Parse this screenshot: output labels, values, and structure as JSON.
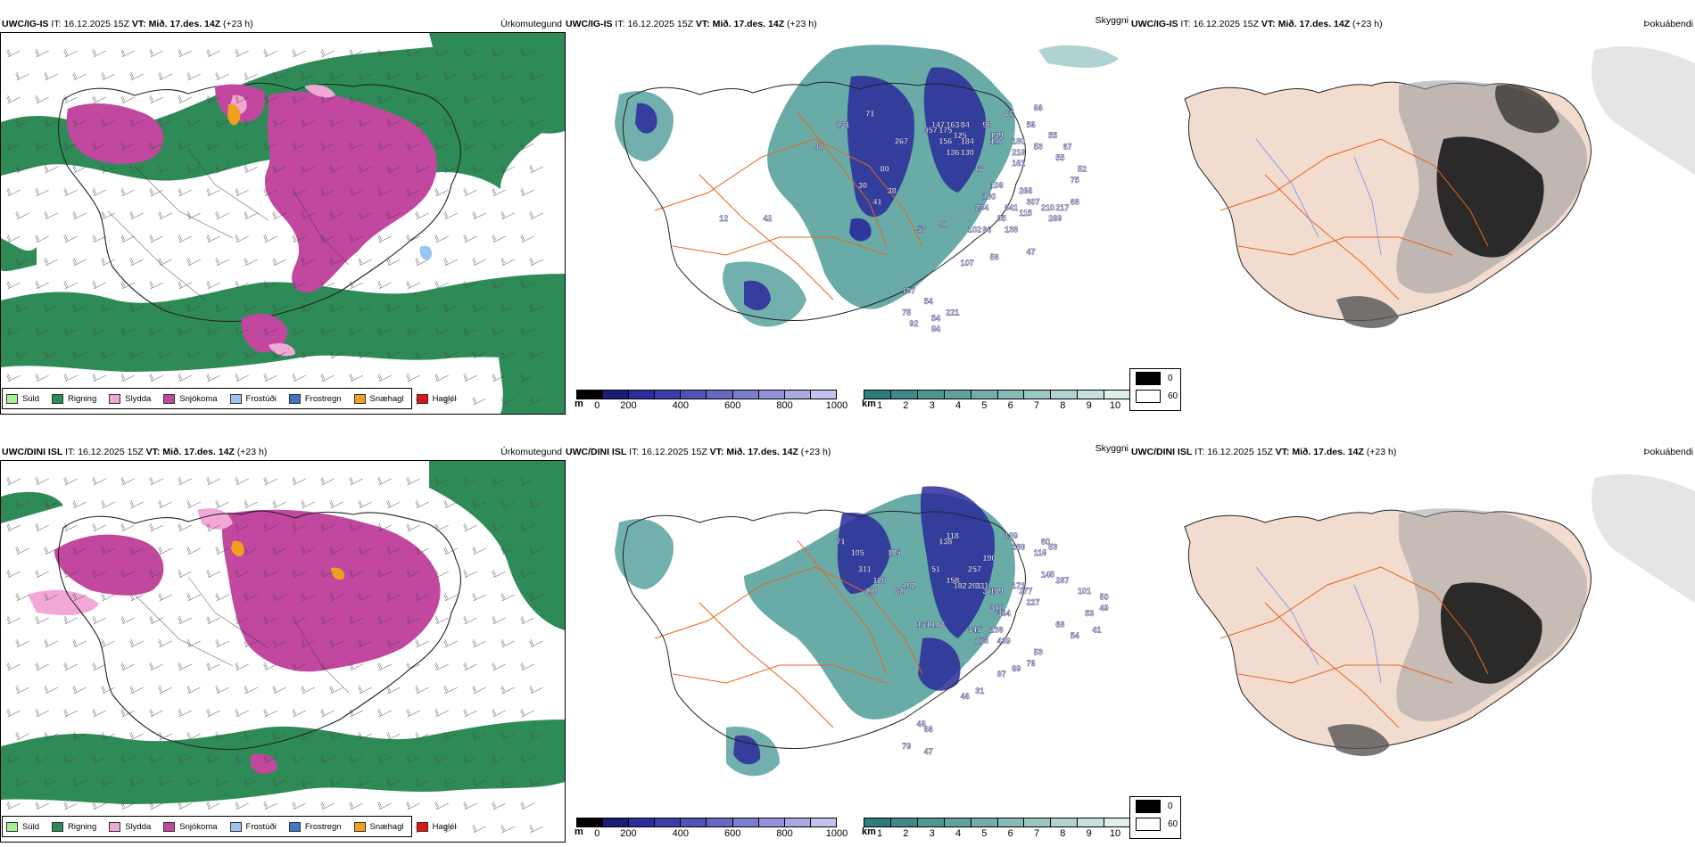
{
  "rows": [
    {
      "product": "UWC/IG-IS",
      "it_label": "IT:",
      "it_value": "16.12.2025 15Z",
      "vt_label": "VT:",
      "vt_value": "Mið. 17.des. 14Z",
      "lead": "(+23 h)",
      "variables": [
        "Úrkomutegund",
        "Skyggni",
        "Þokuábendi"
      ],
      "visibility_labels": [
        "131",
        "71",
        "98",
        "267",
        "80",
        "30",
        "38",
        "41",
        "147",
        "163",
        "457",
        "175",
        "84",
        "125",
        "156",
        "184",
        "130",
        "136",
        "96",
        "87",
        "66",
        "56",
        "55",
        "139",
        "147",
        "180",
        "53",
        "218",
        "161",
        "55",
        "67",
        "52",
        "75",
        "63",
        "108",
        "266",
        "234",
        "180",
        "95",
        "641",
        "307",
        "210",
        "217",
        "68",
        "57",
        "91",
        "102",
        "96",
        "138",
        "115",
        "269",
        "47",
        "58",
        "107",
        "42",
        "12",
        "197",
        "75",
        "54",
        "221",
        "54",
        "84",
        "92"
      ],
      "vis_points": [
        [
          37,
          14
        ],
        [
          41,
          12
        ],
        [
          34,
          18
        ],
        [
          45,
          17
        ],
        [
          43,
          22
        ],
        [
          40,
          25
        ],
        [
          44,
          26
        ],
        [
          42,
          28
        ],
        [
          50,
          14
        ],
        [
          52,
          14
        ],
        [
          49,
          15
        ],
        [
          51,
          15
        ],
        [
          54,
          14
        ],
        [
          53,
          16
        ],
        [
          51,
          17
        ],
        [
          54,
          17
        ],
        [
          54,
          19
        ],
        [
          52,
          19
        ],
        [
          57,
          14
        ],
        [
          60,
          12
        ],
        [
          64,
          11
        ],
        [
          63,
          14
        ],
        [
          66,
          16
        ],
        [
          58,
          16
        ],
        [
          58,
          17
        ],
        [
          61,
          17
        ],
        [
          64,
          18
        ],
        [
          61,
          19
        ],
        [
          61,
          21
        ],
        [
          67,
          20
        ],
        [
          68,
          18
        ],
        [
          70,
          22
        ],
        [
          69,
          24
        ],
        [
          56,
          22
        ],
        [
          58,
          25
        ],
        [
          62,
          26
        ],
        [
          56,
          29
        ],
        [
          57,
          27
        ],
        [
          59,
          31
        ],
        [
          60,
          29
        ],
        [
          63,
          28
        ],
        [
          65,
          29
        ],
        [
          67,
          29
        ],
        [
          69,
          28
        ],
        [
          48,
          33
        ],
        [
          51,
          32
        ],
        [
          55,
          33
        ],
        [
          57,
          33
        ],
        [
          60,
          33
        ],
        [
          62,
          30
        ],
        [
          66,
          31
        ],
        [
          63,
          37
        ],
        [
          58,
          38
        ],
        [
          54,
          39
        ],
        [
          27,
          31
        ],
        [
          21,
          31
        ],
        [
          46,
          44
        ],
        [
          46,
          48
        ],
        [
          49,
          46
        ],
        [
          52,
          48
        ],
        [
          50,
          49
        ],
        [
          50,
          51
        ],
        [
          47,
          50
        ]
      ]
    },
    {
      "product": "UWC/DINI ISL",
      "it_label": "IT:",
      "it_value": "16.12.2025 15Z",
      "vt_label": "VT:",
      "vt_value": "Mið. 17.des. 14Z",
      "lead": "(+23 h)",
      "variables": [
        "Úrkomutegund",
        "Skyggni",
        "Þokuábendi"
      ],
      "visibility_labels": [
        "71",
        "105",
        "185",
        "311",
        "62",
        "210",
        "126",
        "102",
        "51",
        "118",
        "138",
        "257",
        "190",
        "158",
        "182",
        "201",
        "331",
        "379",
        "139",
        "171",
        "277",
        "227",
        "311",
        "364",
        "345",
        "238",
        "173",
        "439",
        "139",
        "189",
        "60",
        "53",
        "116",
        "145",
        "287",
        "101",
        "50",
        "49",
        "53",
        "68",
        "54",
        "41",
        "76",
        "53",
        "69",
        "87",
        "31",
        "46",
        "131",
        "108",
        "66",
        "47",
        "79",
        "48"
      ],
      "vis_points": [
        [
          37,
          12
        ],
        [
          39,
          14
        ],
        [
          44,
          14
        ],
        [
          40,
          17
        ],
        [
          45,
          21
        ],
        [
          41,
          21
        ],
        [
          42,
          19
        ],
        [
          46,
          20
        ],
        [
          50,
          17
        ],
        [
          52,
          11
        ],
        [
          51,
          12
        ],
        [
          55,
          17
        ],
        [
          57,
          15
        ],
        [
          52,
          19
        ],
        [
          53,
          20
        ],
        [
          55,
          20
        ],
        [
          56,
          20
        ],
        [
          57,
          21
        ],
        [
          58,
          21
        ],
        [
          61,
          20
        ],
        [
          62,
          21
        ],
        [
          63,
          23
        ],
        [
          58,
          24
        ],
        [
          59,
          25
        ],
        [
          55,
          28
        ],
        [
          58,
          28
        ],
        [
          56,
          30
        ],
        [
          59,
          30
        ],
        [
          60,
          11
        ],
        [
          61,
          13
        ],
        [
          65,
          12
        ],
        [
          66,
          13
        ],
        [
          64,
          14
        ],
        [
          65,
          18
        ],
        [
          67,
          19
        ],
        [
          70,
          21
        ],
        [
          73,
          22
        ],
        [
          73,
          24
        ],
        [
          71,
          25
        ],
        [
          67,
          27
        ],
        [
          69,
          29
        ],
        [
          72,
          28
        ],
        [
          63,
          34
        ],
        [
          64,
          32
        ],
        [
          61,
          35
        ],
        [
          59,
          36
        ],
        [
          56,
          39
        ],
        [
          54,
          40
        ],
        [
          48,
          27
        ],
        [
          50,
          27
        ],
        [
          49,
          46
        ],
        [
          49,
          50
        ],
        [
          46,
          49
        ],
        [
          48,
          45
        ]
      ]
    }
  ],
  "precip_legend": [
    {
      "label": "Súld",
      "color": "#a6f08f"
    },
    {
      "label": "Rigning",
      "color": "#2e8b57"
    },
    {
      "label": "Slydda",
      "color": "#f2a8d6"
    },
    {
      "label": "Snjókoma",
      "color": "#c2479f"
    },
    {
      "label": "Frostúði",
      "color": "#9ac4f2"
    },
    {
      "label": "Frostregn",
      "color": "#3e77c4"
    },
    {
      "label": "Snæhagl",
      "color": "#f0a020"
    },
    {
      "label": "Haglél",
      "color": "#e01515"
    }
  ],
  "height_bar": {
    "unit": "m",
    "ticks": [
      "0",
      "200",
      "400",
      "600",
      "800",
      "1000"
    ],
    "colors": [
      "#000000",
      "#1c1c78",
      "#2d2d9c",
      "#3d3dad",
      "#5252b8",
      "#6868c4",
      "#7e7ece",
      "#9494d8",
      "#aaaae2",
      "#c2c2ec"
    ]
  },
  "vis_bar": {
    "unit": "km",
    "ticks": [
      "1",
      "2",
      "3",
      "4",
      "5",
      "6",
      "7",
      "8",
      "9",
      "10"
    ],
    "colors": [
      "#2e7d7d",
      "#3e8a88",
      "#509694",
      "#62a2a0",
      "#74aeab",
      "#88bab7",
      "#9cc6c3",
      "#b2d3d0",
      "#c8e0de",
      "#e0eeec"
    ]
  },
  "fog_legend": [
    {
      "label": "0",
      "color": "#000000"
    },
    {
      "label": "60",
      "color": "#ffffff"
    }
  ],
  "colors": {
    "rain": "#2e8b57",
    "snow": "#c2479f",
    "sleet": "#f2a8d6",
    "ice": "#f0a020",
    "vis_teal": "#3f8f8c",
    "vis_blue": "#2a2a9a",
    "land": "#f2dcd0",
    "road": "#e8641e",
    "river": "#7b8cf0"
  }
}
